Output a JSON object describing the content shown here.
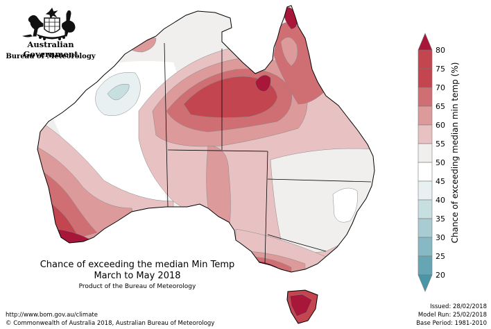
{
  "header": {
    "gov_name": "Australian Government",
    "bureau_name": "Bureau of Meteorology"
  },
  "map": {
    "title_line1": "Chance of exceeding the median Min Temp",
    "title_line2": "March to May 2018",
    "product": "Product of the Bureau of Meteorology"
  },
  "legend": {
    "title": "Chance of exceeding median min temp (%)",
    "levels": [
      {
        "label": "80",
        "color": "#a8173a"
      },
      {
        "label": "75",
        "color": "#c2454f"
      },
      {
        "label": "70",
        "color": "#d06f73"
      },
      {
        "label": "65",
        "color": "#dc9a9b"
      },
      {
        "label": "60",
        "color": "#e8c2c3"
      },
      {
        "label": "55",
        "color": "#f0efee"
      },
      {
        "label": "50",
        "color": "#ffffff"
      },
      {
        "label": "45",
        "color": "#e9f0f2"
      },
      {
        "label": "40",
        "color": "#c8dfe2"
      },
      {
        "label": "35",
        "color": "#a8ccd2"
      },
      {
        "label": "30",
        "color": "#86b9c3"
      },
      {
        "label": "25",
        "color": "#66a6b4"
      },
      {
        "label": "20",
        "color": "#4896a6"
      }
    ]
  },
  "footer": {
    "url": "http://www.bom.gov.au/climate",
    "copyright": "© Commonwealth of Australia 2018, Australian Bureau of Meteorology",
    "issued": "Issued: 28/02/2018",
    "model_run": "Model Run: 25/02/2018",
    "base_period": "Base Period: 1981-2010"
  }
}
